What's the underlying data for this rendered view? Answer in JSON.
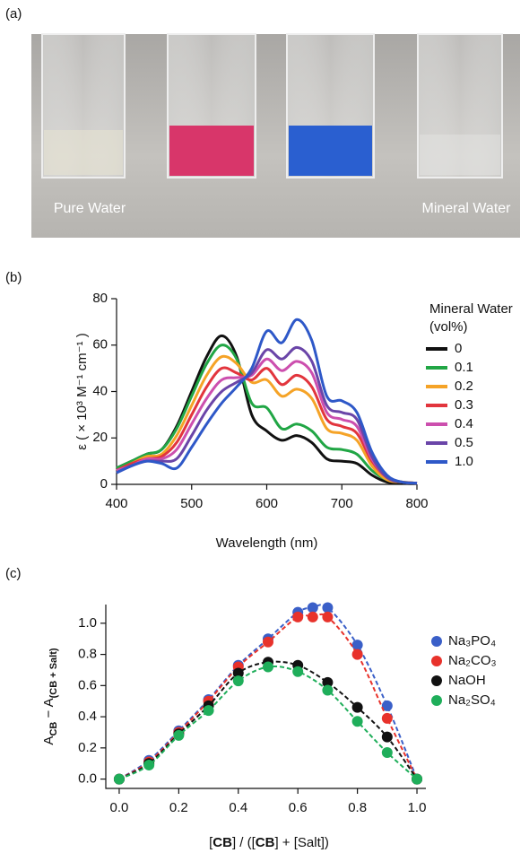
{
  "photo": {
    "panel_label": "(a)",
    "left_label": "Pure Water",
    "right_label": "Mineral Water"
  },
  "chart_data": [
    {
      "type": "line",
      "panel_label": "(b)",
      "x_label": "Wavelength (nm)",
      "y_label": "ε ( × 10³ M⁻¹  cm⁻¹ )",
      "legend_title": [
        "Mineral Water",
        "(vol%)"
      ],
      "xlim": [
        400,
        800
      ],
      "ylim": [
        0,
        80
      ],
      "xticks": [
        400,
        500,
        600,
        700,
        800
      ],
      "yticks": [
        0,
        20,
        40,
        60,
        80
      ],
      "x": [
        400,
        420,
        440,
        460,
        480,
        500,
        520,
        540,
        560,
        580,
        600,
        620,
        640,
        660,
        680,
        700,
        720,
        740,
        760,
        780,
        800
      ],
      "series": [
        {
          "name": "0",
          "color": "#111111",
          "values": [
            7,
            10,
            13,
            15,
            25,
            40,
            55,
            64,
            55,
            30,
            23,
            19,
            21,
            18,
            11,
            10,
            9,
            4,
            1,
            0.5,
            0.3
          ]
        },
        {
          "name": "0.1",
          "color": "#21a645",
          "values": [
            7,
            10,
            13,
            15,
            24,
            38,
            52,
            60,
            54,
            35,
            33,
            24,
            26,
            23,
            16,
            15,
            13,
            6,
            2,
            1,
            0.5
          ]
        },
        {
          "name": "0.2",
          "color": "#f5a327",
          "values": [
            6,
            9,
            12,
            13,
            21,
            34,
            47,
            55,
            52,
            44,
            45,
            38,
            41,
            37,
            24,
            22,
            19,
            8,
            2,
            1,
            0.5
          ]
        },
        {
          "name": "0.3",
          "color": "#e2353d",
          "values": [
            6,
            9,
            11,
            12,
            18,
            30,
            42,
            50,
            48,
            45,
            50,
            43,
            47,
            42,
            28,
            25,
            22,
            10,
            3,
            1,
            0.5
          ]
        },
        {
          "name": "0.4",
          "color": "#cc4fae",
          "values": [
            6,
            8,
            11,
            11,
            15,
            26,
            37,
            45,
            46,
            47,
            54,
            49,
            53,
            48,
            31,
            28,
            25,
            11,
            3,
            1,
            0.5
          ]
        },
        {
          "name": "0.5",
          "color": "#6a45a8",
          "values": [
            5,
            8,
            10,
            10,
            11,
            21,
            32,
            40,
            44,
            48,
            58,
            54,
            59,
            53,
            34,
            31,
            28,
            12,
            3,
            1,
            0.5
          ]
        },
        {
          "name": "1.0",
          "color": "#2e58c8",
          "values": [
            5,
            8,
            10,
            9,
            7,
            16,
            26,
            35,
            42,
            50,
            66,
            61,
            71,
            62,
            38,
            36,
            31,
            14,
            4,
            1,
            0.5
          ]
        }
      ]
    },
    {
      "type": "scatter",
      "panel_label": "(c)",
      "x_label": [
        "[",
        "CB",
        "] / ([",
        "CB",
        "] + [Salt])"
      ],
      "y_label": [
        "A",
        "CB",
        " − A",
        "(CB + Salt)"
      ],
      "xlim": [
        -0.045,
        1.03
      ],
      "ylim": [
        -0.06,
        1.12
      ],
      "xticks": [
        {
          "value": 0,
          "label": "0.0"
        },
        {
          "value": 0.2,
          "label": "0.2"
        },
        {
          "value": 0.4,
          "label": "0.4"
        },
        {
          "value": 0.6,
          "label": "0.6"
        },
        {
          "value": 0.8,
          "label": "0.8"
        },
        {
          "value": 1,
          "label": "1.0"
        }
      ],
      "yticks": [
        {
          "value": 0,
          "label": "0.0"
        },
        {
          "value": 0.2,
          "label": "0.2"
        },
        {
          "value": 0.4,
          "label": "0.4"
        },
        {
          "value": 0.6,
          "label": "0.6"
        },
        {
          "value": 0.8,
          "label": "0.8"
        },
        {
          "value": 1,
          "label": "1.0"
        }
      ],
      "series": [
        {
          "name": "Na₃PO₄",
          "color": "#3a5fc8",
          "x": [
            0,
            0.1,
            0.2,
            0.3,
            0.4,
            0.5,
            0.6,
            0.65,
            0.7,
            0.8,
            0.9,
            1
          ],
          "values": [
            0,
            0.12,
            0.31,
            0.51,
            0.73,
            0.9,
            1.07,
            1.1,
            1.1,
            0.86,
            0.47,
            0
          ]
        },
        {
          "name": "Na₂CO₃",
          "color": "#e8322b",
          "x": [
            0,
            0.1,
            0.2,
            0.3,
            0.4,
            0.5,
            0.6,
            0.65,
            0.7,
            0.8,
            0.9,
            1
          ],
          "values": [
            0,
            0.11,
            0.3,
            0.5,
            0.72,
            0.88,
            1.04,
            1.04,
            1.04,
            0.8,
            0.39,
            0
          ]
        },
        {
          "name": "NaOH",
          "color": "#111111",
          "x": [
            0,
            0.1,
            0.2,
            0.3,
            0.4,
            0.5,
            0.6,
            0.7,
            0.8,
            0.9,
            1
          ],
          "values": [
            0,
            0.1,
            0.29,
            0.47,
            0.68,
            0.75,
            0.73,
            0.62,
            0.46,
            0.27,
            0
          ]
        },
        {
          "name": "Na₂SO₄",
          "color": "#1fae5a",
          "x": [
            0,
            0.1,
            0.2,
            0.3,
            0.4,
            0.5,
            0.6,
            0.7,
            0.8,
            0.9,
            1
          ],
          "values": [
            0,
            0.09,
            0.28,
            0.44,
            0.63,
            0.72,
            0.69,
            0.57,
            0.37,
            0.17,
            0
          ]
        }
      ]
    }
  ]
}
